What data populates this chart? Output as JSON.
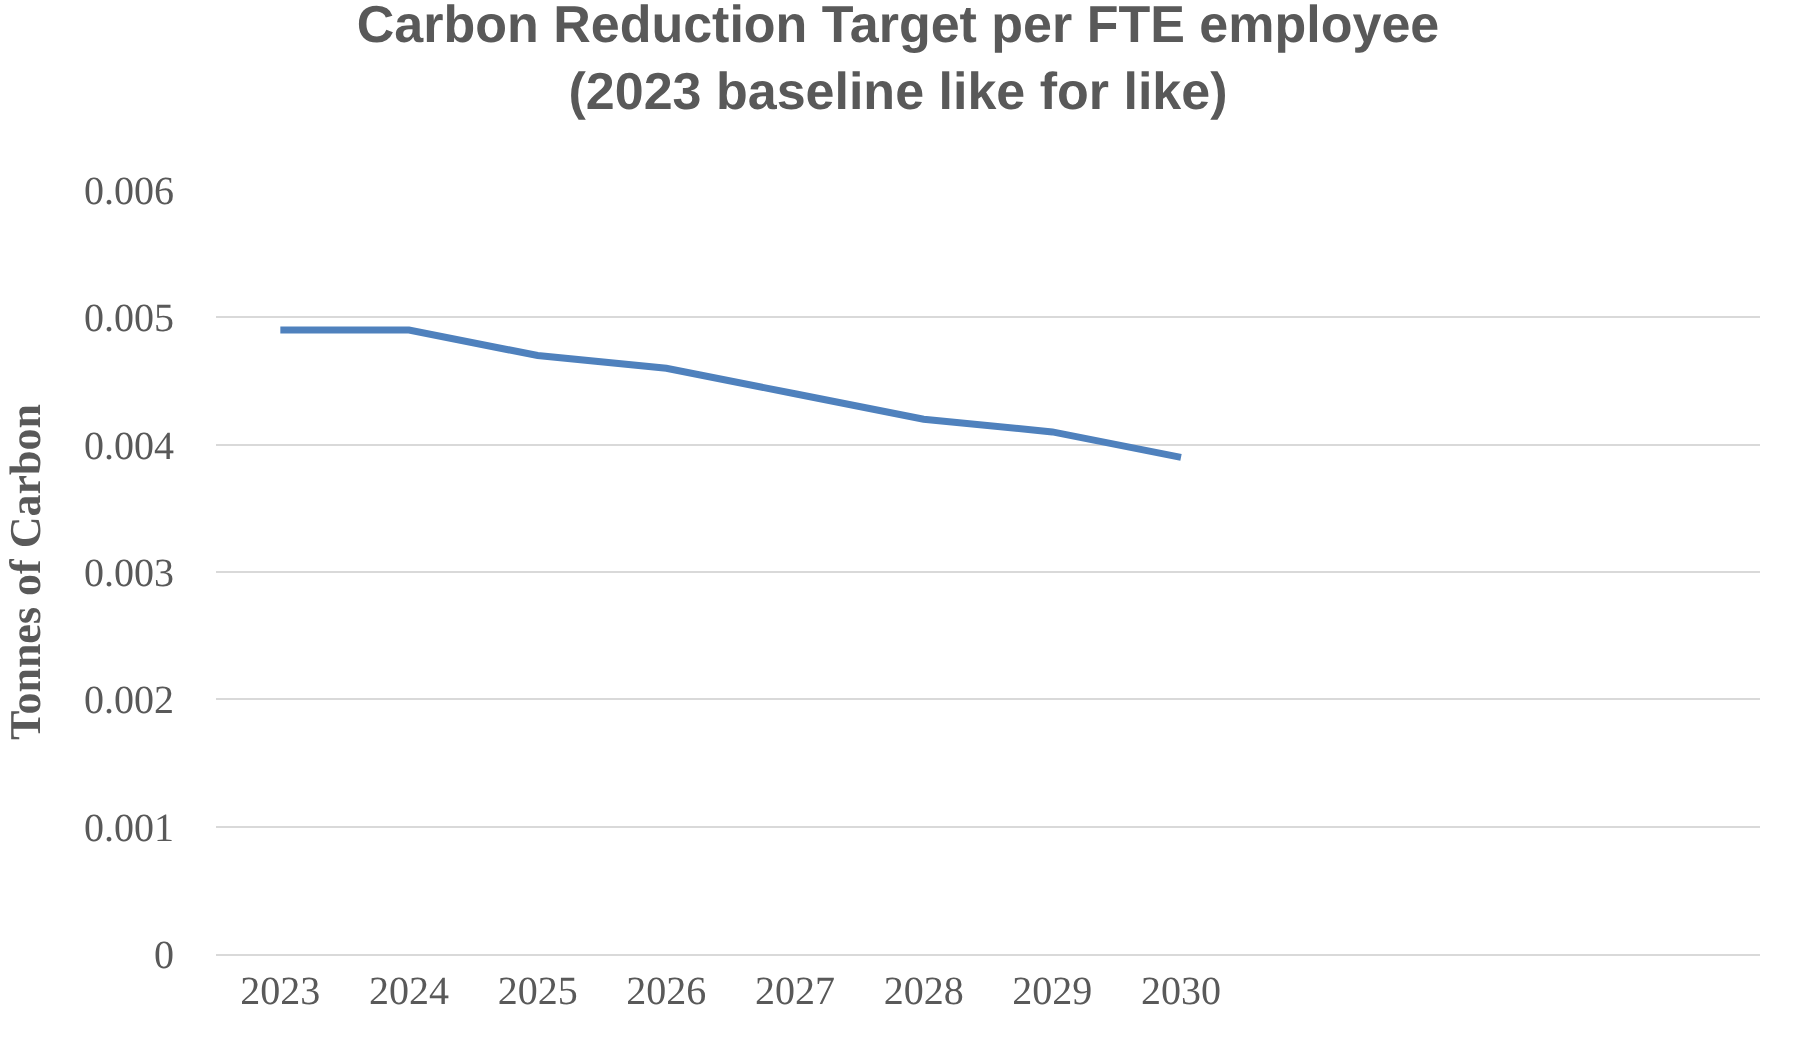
{
  "chart_data": {
    "type": "line",
    "title": "Carbon Reduction Target per FTE employee\n(2023 baseline like for like)",
    "ylabel": "Tonnes of Carbon",
    "categories": [
      "2023",
      "2024",
      "2025",
      "2026",
      "2027",
      "2028",
      "2029",
      "2030",
      null,
      null,
      null,
      null
    ],
    "series": [
      {
        "color": "#4f81bd",
        "values": [
          0.0049,
          0.0049,
          0.0047,
          0.0046,
          0.0044,
          0.0042,
          0.0041,
          0.0039,
          null,
          null,
          null,
          null
        ]
      }
    ],
    "ylim": [
      0,
      0.006
    ],
    "yticks": [
      0,
      0.001,
      0.002,
      0.003,
      0.004,
      0.005,
      0.006
    ],
    "grid": "y",
    "legend": false,
    "marker": "none",
    "line_style": "solid"
  }
}
